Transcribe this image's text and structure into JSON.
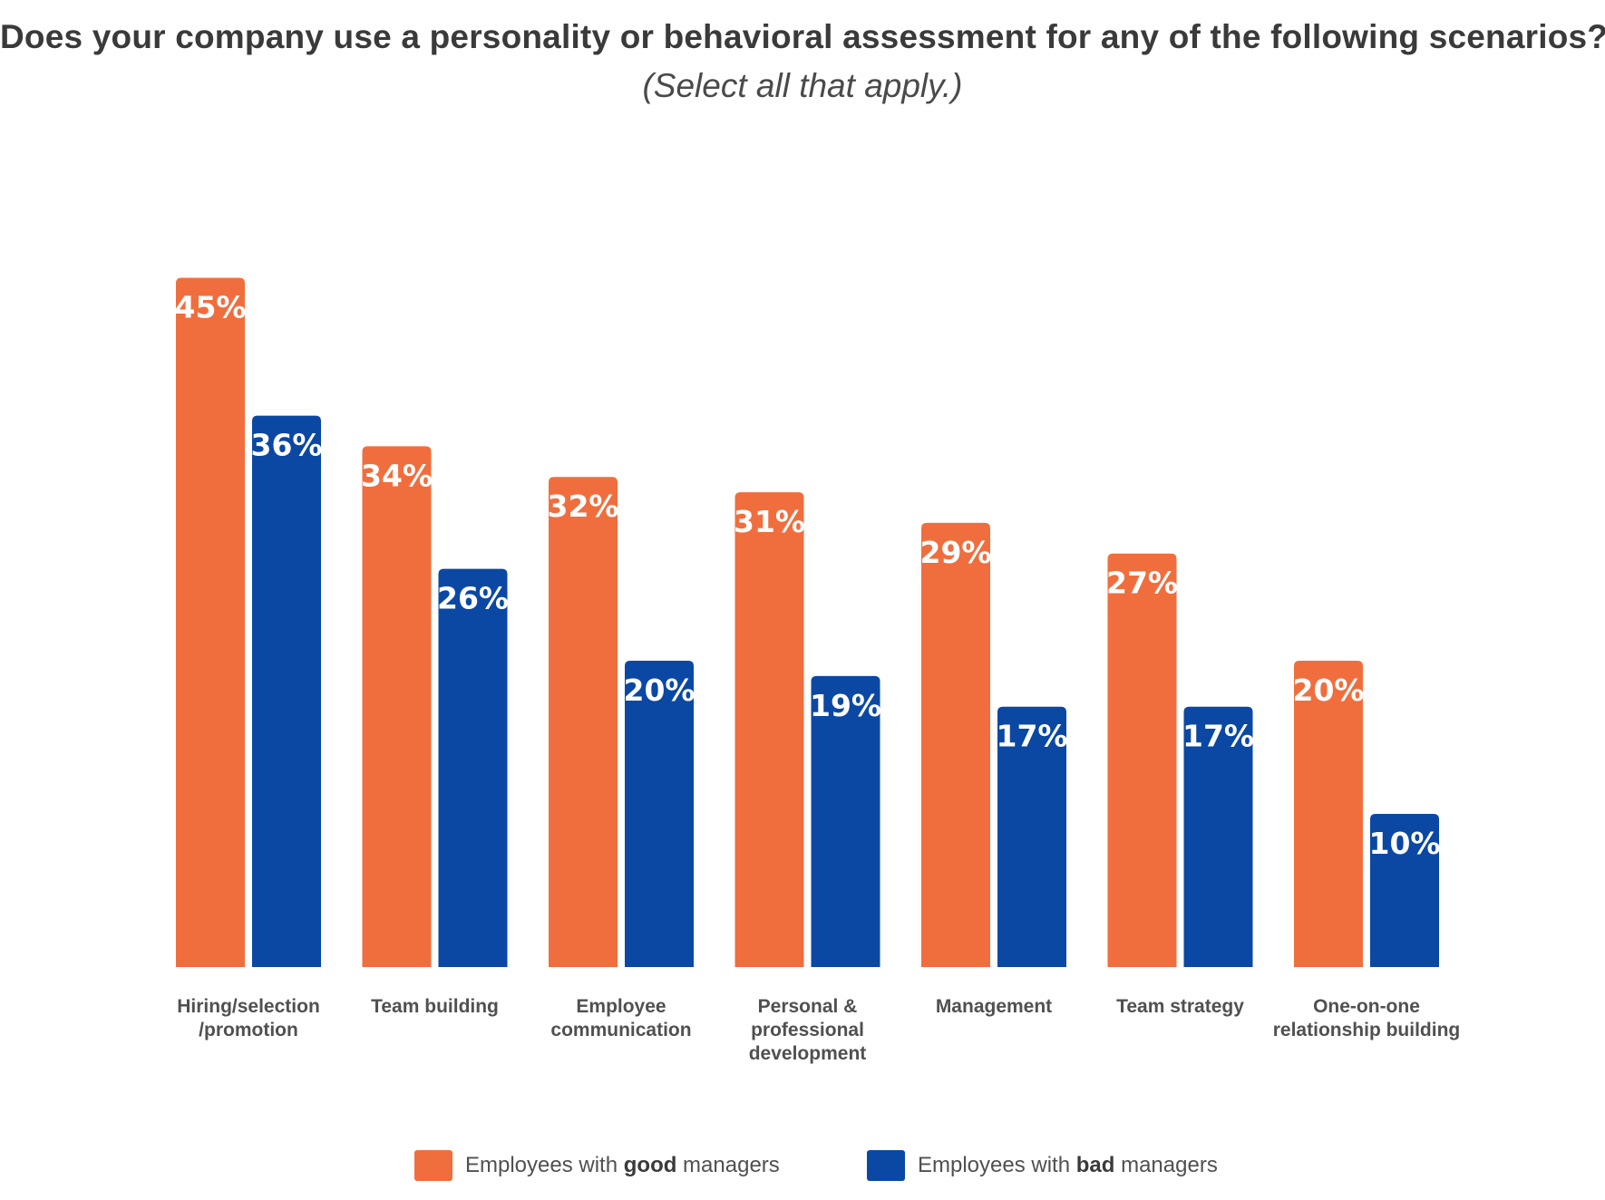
{
  "chart_data": {
    "type": "bar",
    "title": "Does your company use a personality or behavioral assessment for any of the following scenarios?",
    "subtitle": "(Select all that apply.)",
    "categories": [
      [
        "Hiring/selection",
        "/promotion"
      ],
      [
        "Team building"
      ],
      [
        "Employee",
        "communication"
      ],
      [
        "Personal &",
        "professional",
        "development"
      ],
      [
        "Management"
      ],
      [
        "Team strategy"
      ],
      [
        "One-on-one",
        "relationship building"
      ]
    ],
    "series": [
      {
        "name": "Employees with good managers",
        "color": "#f06e3e",
        "values": [
          45,
          34,
          32,
          31,
          29,
          27,
          20
        ],
        "labels": [
          "45%",
          "34%",
          "32%",
          "31%",
          "29%",
          "27%",
          "20%"
        ]
      },
      {
        "name": "Employees with bad managers",
        "color": "#0a48a4",
        "values": [
          36,
          26,
          20,
          19,
          17,
          17,
          10
        ],
        "labels": [
          "36%",
          "26%",
          "20%",
          "19%",
          "17%",
          "17%",
          "10%"
        ]
      }
    ],
    "ylim": [
      0,
      45
    ],
    "grid": false,
    "legend": {
      "placement": "bottom",
      "items": [
        {
          "prefix": "Employees with ",
          "bold": "good",
          "suffix": " managers",
          "color": "#f06e3e"
        },
        {
          "prefix": "Employees with ",
          "bold": "bad",
          "suffix": " managers",
          "color": "#0a48a4"
        }
      ]
    }
  }
}
